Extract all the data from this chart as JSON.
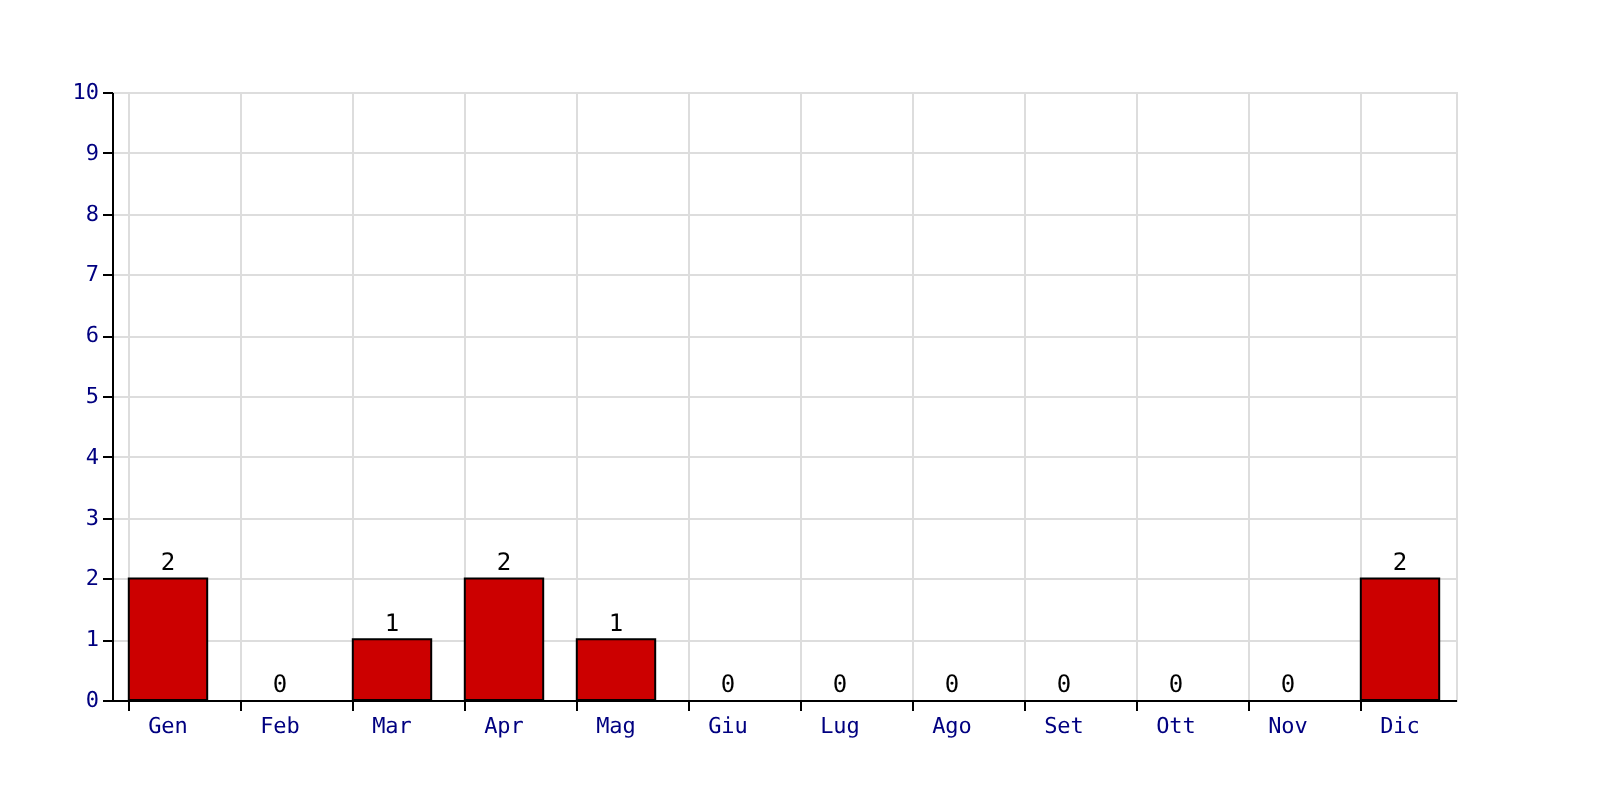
{
  "chart_data": {
    "type": "bar",
    "categories": [
      "Gen",
      "Feb",
      "Mar",
      "Apr",
      "Mag",
      "Giu",
      "Lug",
      "Ago",
      "Set",
      "Ott",
      "Nov",
      "Dic"
    ],
    "values": [
      2,
      0,
      1,
      2,
      1,
      0,
      0,
      0,
      0,
      0,
      0,
      2
    ],
    "color": "#cc0000",
    "ylim": [
      0,
      10
    ],
    "yticks": [
      0,
      1,
      2,
      3,
      4,
      5,
      6,
      7,
      8,
      9,
      10
    ],
    "grid": true,
    "data_labels": true
  }
}
